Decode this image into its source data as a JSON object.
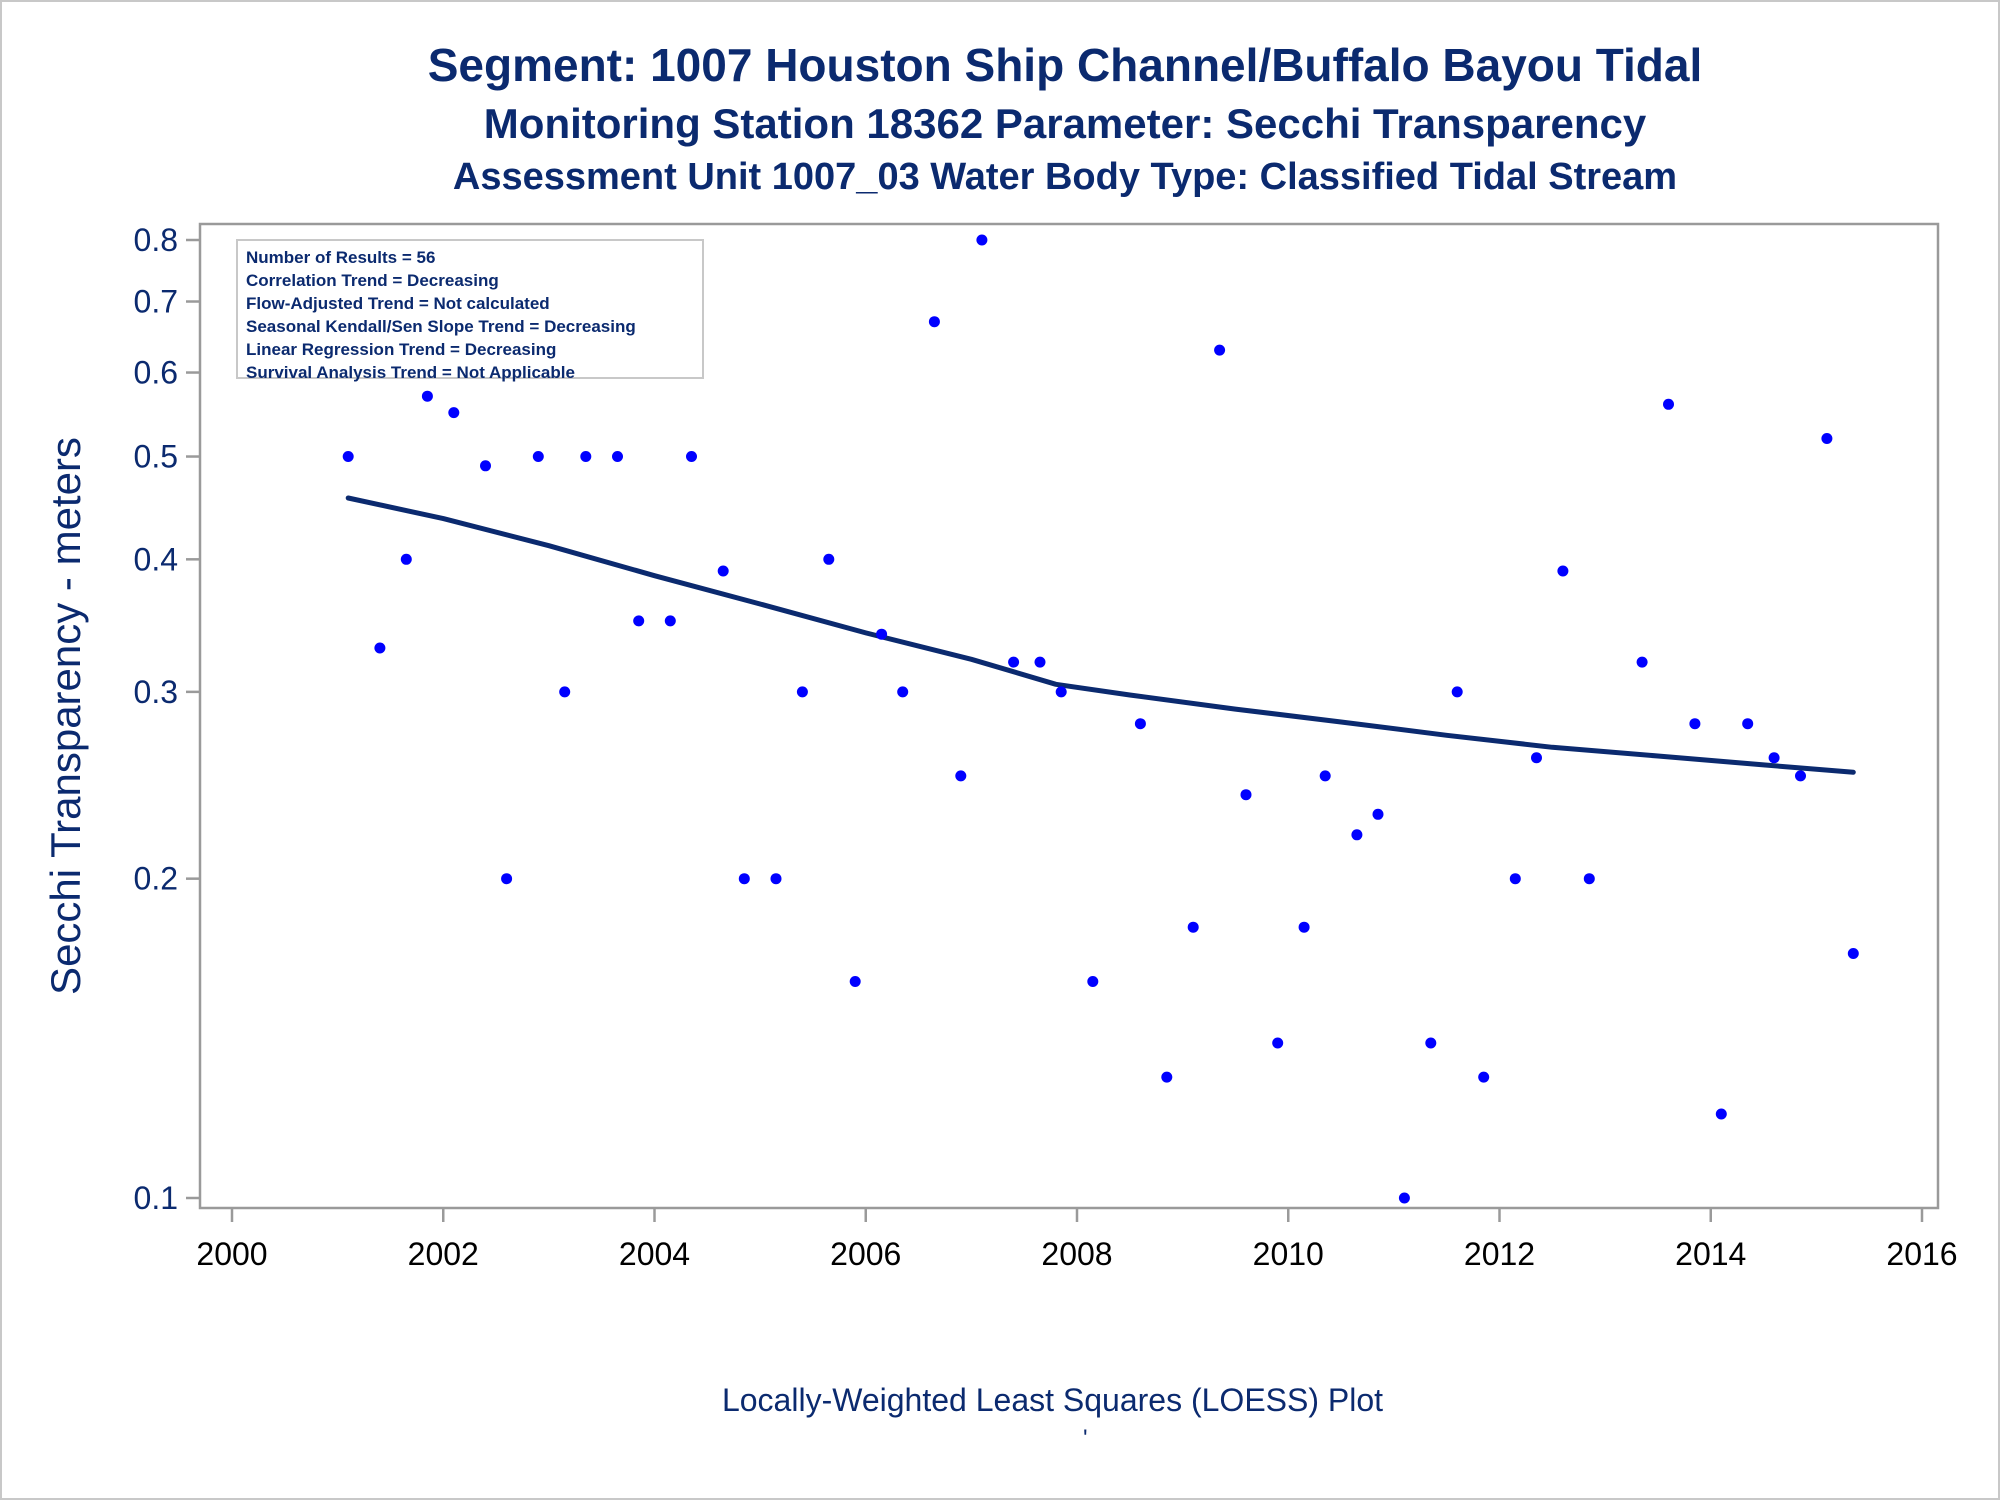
{
  "titles": {
    "line1": "Segment: 1007  Houston Ship Channel/Buffalo Bayou Tidal",
    "line2": "Monitoring Station 18362 Parameter: Secchi Transparency",
    "line3": "Assessment Unit 1007_03   Water Body Type: Classified Tidal Stream"
  },
  "stats": [
    "Number of Results = 56",
    "Correlation Trend = Decreasing",
    "Flow-Adjusted Trend = Not calculated",
    "Seasonal Kendall/Sen Slope Trend = Decreasing",
    "Linear Regression Trend = Decreasing",
    "Survival Analysis Trend = Not Applicable"
  ],
  "footer": {
    "label": "Locally-Weighted Least Squares (LOESS) Plot",
    "mark": "'"
  },
  "colors": {
    "title": "#0b2a6f",
    "points": "#0000ff",
    "loess": "#0b2a6f",
    "axis": "#9a9a9a"
  },
  "chart_data": {
    "type": "scatter",
    "title": "Segment: 1007  Houston Ship Channel/Buffalo Bayou Tidal",
    "ylabel": "Secchi Transparency - meters",
    "xlabel": "",
    "yscale": "log",
    "xlim": [
      2000,
      2016
    ],
    "ylim": [
      0.1,
      0.8
    ],
    "xticks": [
      2000,
      2002,
      2004,
      2006,
      2008,
      2010,
      2012,
      2014,
      2016
    ],
    "yticks": [
      0.1,
      0.2,
      0.3,
      0.4,
      0.5,
      0.6,
      0.7,
      0.8
    ],
    "ytick_labels": [
      "0.1",
      "0.2",
      "0.3",
      "0.4",
      "0.5",
      "0.6",
      "0.7",
      "0.8"
    ],
    "grid": false,
    "series": [
      {
        "type": "scatter",
        "points": [
          [
            2001.1,
            0.5
          ],
          [
            2001.4,
            0.33
          ],
          [
            2001.65,
            0.4
          ],
          [
            2001.85,
            0.57
          ],
          [
            2002.1,
            0.55
          ],
          [
            2002.4,
            0.49
          ],
          [
            2002.6,
            0.2
          ],
          [
            2002.9,
            0.5
          ],
          [
            2003.15,
            0.3
          ],
          [
            2003.35,
            0.5
          ],
          [
            2003.65,
            0.5
          ],
          [
            2003.85,
            0.35
          ],
          [
            2004.15,
            0.35
          ],
          [
            2004.35,
            0.5
          ],
          [
            2004.65,
            0.39
          ],
          [
            2004.85,
            0.2
          ],
          [
            2005.15,
            0.2
          ],
          [
            2005.4,
            0.3
          ],
          [
            2005.65,
            0.4
          ],
          [
            2005.9,
            0.16
          ],
          [
            2006.15,
            0.34
          ],
          [
            2006.35,
            0.3
          ],
          [
            2006.65,
            0.67
          ],
          [
            2006.9,
            0.25
          ],
          [
            2007.1,
            0.8
          ],
          [
            2007.4,
            0.32
          ],
          [
            2007.65,
            0.32
          ],
          [
            2007.85,
            0.3
          ],
          [
            2008.15,
            0.16
          ],
          [
            2008.6,
            0.28
          ],
          [
            2008.85,
            0.13
          ],
          [
            2009.1,
            0.18
          ],
          [
            2009.35,
            0.63
          ],
          [
            2009.6,
            0.24
          ],
          [
            2009.9,
            0.14
          ],
          [
            2010.35,
            0.25
          ],
          [
            2010.15,
            0.18
          ],
          [
            2010.65,
            0.22
          ],
          [
            2010.85,
            0.23
          ],
          [
            2011.1,
            0.1
          ],
          [
            2011.35,
            0.14
          ],
          [
            2011.6,
            0.3
          ],
          [
            2011.85,
            0.13
          ],
          [
            2012.15,
            0.2
          ],
          [
            2012.35,
            0.26
          ],
          [
            2012.6,
            0.39
          ],
          [
            2012.85,
            0.2
          ],
          [
            2013.35,
            0.32
          ],
          [
            2013.6,
            0.56
          ],
          [
            2013.85,
            0.28
          ],
          [
            2014.1,
            0.12
          ],
          [
            2014.35,
            0.28
          ],
          [
            2014.6,
            0.26
          ],
          [
            2014.85,
            0.25
          ],
          [
            2015.1,
            0.52
          ],
          [
            2015.35,
            0.17
          ]
        ]
      },
      {
        "type": "line",
        "points": [
          [
            2001.1,
            0.457
          ],
          [
            2002.0,
            0.437
          ],
          [
            2003.0,
            0.412
          ],
          [
            2004.0,
            0.386
          ],
          [
            2005.0,
            0.363
          ],
          [
            2006.0,
            0.341
          ],
          [
            2007.0,
            0.322
          ],
          [
            2007.8,
            0.305
          ],
          [
            2008.5,
            0.298
          ],
          [
            2009.5,
            0.289
          ],
          [
            2010.5,
            0.281
          ],
          [
            2011.5,
            0.273
          ],
          [
            2012.5,
            0.266
          ],
          [
            2013.5,
            0.261
          ],
          [
            2014.5,
            0.256
          ],
          [
            2015.35,
            0.252
          ]
        ]
      }
    ]
  }
}
